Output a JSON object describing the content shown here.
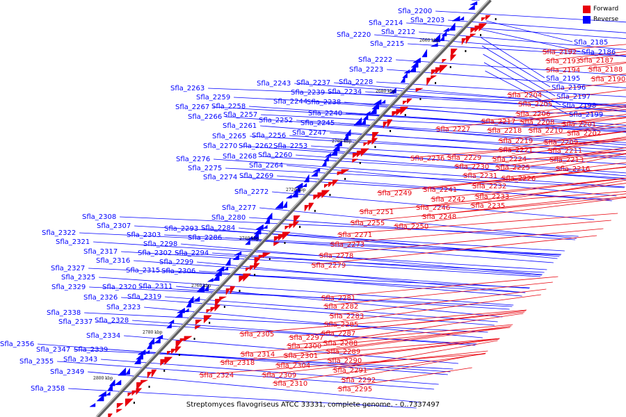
{
  "caption": "Streptomyces flavogriseus ATCC 33331, complete genome. - 0..7337497",
  "legend": [
    {
      "label": "Forward",
      "color": "#e8000b"
    },
    {
      "label": "Reverse",
      "color": "#0000ff"
    }
  ],
  "colors": {
    "forward": "#e8000b",
    "reverse": "#0000ff",
    "backbone": "#808080"
  },
  "kbp_ticks": [
    "2660 kbp",
    "2680 kbp",
    "2700 kbp",
    "2720 kbp",
    "2740 kbp",
    "2760 kbp",
    "2780 kbp",
    "2800 kbp"
  ],
  "reverse_labels": [
    "Sfla_2200",
    "Sfla_2203",
    "Sfla_2214",
    "Sfla_2212",
    "Sfla_2220",
    "Sfla_2215",
    "Sfla_2222",
    "Sfla_2223",
    "Sfla_2243",
    "Sfla_2237",
    "Sfla_2228",
    "Sfla_2239",
    "Sfla_2234",
    "Sfla_2244",
    "Sfla_2238",
    "Sfla_2263",
    "Sfla_2259",
    "Sfla_2267",
    "Sfla_2258",
    "Sfla_2266",
    "Sfla_2257",
    "Sfla_2240",
    "Sfla_2252",
    "Sfla_2245",
    "Sfla_2261",
    "Sfla_2247",
    "Sfla_2265",
    "Sfla_2256",
    "Sfla_2270",
    "Sfla_2262",
    "Sfla_2253",
    "Sfla_2268",
    "Sfla_2260",
    "Sfla_2276",
    "Sfla_2264",
    "Sfla_2275",
    "Sfla_2274",
    "Sfla_2269",
    "Sfla_2272",
    "Sfla_2277",
    "Sfla_2308",
    "Sfla_2280",
    "Sfla_2307",
    "Sfla_2293",
    "Sfla_2284",
    "Sfla_2303",
    "Sfla_2322",
    "Sfla_2286",
    "Sfla_2321",
    "Sfla_2298",
    "Sfla_2302",
    "Sfla_2294",
    "Sfla_2317",
    "Sfla_2316",
    "Sfla_2299",
    "Sfla_2327",
    "Sfla_2315",
    "Sfla_2306",
    "Sfla_2325",
    "Sfla_2311",
    "Sfla_2329",
    "Sfla_2320",
    "Sfla_2319",
    "Sfla_2326",
    "Sfla_2323",
    "Sfla_2338",
    "Sfla_2337",
    "Sfla_2328",
    "Sfla_2334",
    "Sfla_2356",
    "Sfla_2347",
    "Sfla_2339",
    "Sfla_2343",
    "Sfla_2355",
    "Sfla_2349",
    "Sfla_2358",
    "Sfla_2185",
    "Sfla_2186",
    "Sfla_2195",
    "Sfla_2196",
    "Sfla_2197",
    "Sfla_2198",
    "Sfla_2199"
  ],
  "forward_labels": [
    "Sfla_2192",
    "Sfla_2187",
    "Sfla_2193",
    "Sfla_2188",
    "Sfla_2194",
    "Sfla_2190",
    "Sfla_2204",
    "Sfla_2205",
    "Sfla_2206",
    "Sfla_2201",
    "Sfla_2217",
    "Sfla_2208",
    "Sfla_2218",
    "Sfla_2210",
    "Sfla_2202",
    "Sfla_2227",
    "Sfla_2209",
    "Sfla_2219",
    "Sfla_2211",
    "Sfla_2221",
    "Sfla_2213",
    "Sfla_2236",
    "Sfla_2229",
    "Sfla_2224",
    "Sfla_2230",
    "Sfla_2225",
    "Sfla_2216",
    "Sfla_2231",
    "Sfla_2226",
    "Sfla_2232",
    "Sfla_2241",
    "Sfla_2249",
    "Sfla_2233",
    "Sfla_2242",
    "Sfla_2246",
    "Sfla_2235",
    "Sfla_2251",
    "Sfla_2248",
    "Sfla_2255",
    "Sfla_2250",
    "Sfla_2271",
    "Sfla_2273",
    "Sfla_2278",
    "Sfla_2279",
    "Sfla_2281",
    "Sfla_2282",
    "Sfla_2283",
    "Sfla_2285",
    "Sfla_2287",
    "Sfla_2305",
    "Sfla_2297",
    "Sfla_2288",
    "Sfla_2300",
    "Sfla_2289",
    "Sfla_2314",
    "Sfla_2301",
    "Sfla_2290",
    "Sfla_2318",
    "Sfla_2304",
    "Sfla_2291",
    "Sfla_2324",
    "Sfla_2309",
    "Sfla_2292",
    "Sfla_2310",
    "Sfla_2295"
  ]
}
